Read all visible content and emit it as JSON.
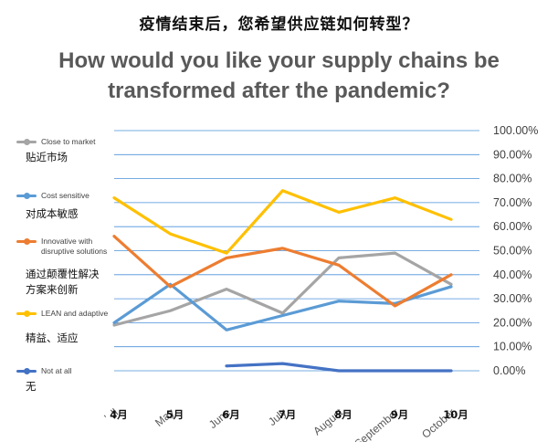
{
  "title_cn": "疫情结束后，您希望供应链如何转型？",
  "title_en": "How would you like your supply chains be transformed after the pandemic?",
  "chart_data": {
    "type": "line",
    "categories": [
      {
        "en": "April",
        "cn": "4月",
        "en_display": "ʼ ,ll"
      },
      {
        "en": "May",
        "cn": "5月"
      },
      {
        "en": "June",
        "cn": "6月"
      },
      {
        "en": "July",
        "cn": "7月"
      },
      {
        "en": "August",
        "cn": "8月"
      },
      {
        "en": "September",
        "cn": "9月"
      },
      {
        "en": "October",
        "cn": "10月"
      }
    ],
    "ylim": [
      0,
      100
    ],
    "y_ticks": [
      "0.00%",
      "10.00%",
      "20.00%",
      "30.00%",
      "40.00%",
      "50.00%",
      "60.00%",
      "70.00%",
      "80.00%",
      "90.00%",
      "100.00%"
    ],
    "grid": true,
    "legend_position": "left",
    "series": [
      {
        "name": "Close to market",
        "name_cn": "贴近市场",
        "color": "#a5a5a5",
        "values": [
          19,
          25,
          34,
          24,
          47,
          49,
          36
        ]
      },
      {
        "name": "Cost sensitive",
        "name_cn": "对成本敏感",
        "color": "#5b9bd5",
        "values": [
          20,
          36,
          17,
          23,
          29,
          28,
          35
        ]
      },
      {
        "name": "Innovative with disruptive solutions",
        "name_cn": "通过颠覆性解决方案来创新",
        "color": "#ed7d31",
        "values": [
          56,
          35,
          47,
          51,
          44,
          27,
          40
        ]
      },
      {
        "name": "LEAN and adaptive",
        "name_cn": "精益、适应",
        "color": "#ffc000",
        "values": [
          72,
          57,
          49,
          75,
          66,
          72,
          63
        ]
      },
      {
        "name": "Not at all",
        "name_cn": "无",
        "color": "#4472c4",
        "values": [
          null,
          null,
          2,
          3,
          0,
          0,
          0
        ]
      }
    ]
  }
}
